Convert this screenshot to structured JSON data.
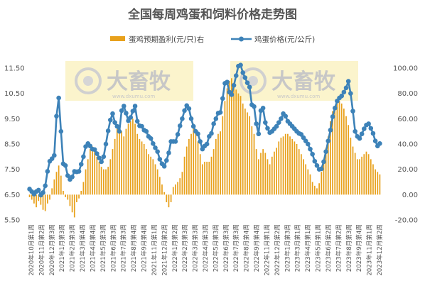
{
  "chart_data": {
    "type": "bar+line",
    "title": "全国每周鸡蛋和饲料价格走势图",
    "series": [
      {
        "name": "蛋鸡预期盈利(元/只)右",
        "type": "bar",
        "axis": "right",
        "color": "#e8a11c"
      },
      {
        "name": "鸡蛋价格(元/公斤)",
        "type": "line",
        "axis": "left",
        "color": "#3d82b8"
      }
    ],
    "left_axis": {
      "ylim": [
        5.5,
        11.5
      ],
      "ticks": [
        "5.50",
        "6.50",
        "7.50",
        "8.50",
        "9.50",
        "10.50",
        "11.50"
      ]
    },
    "right_axis": {
      "ylim": [
        -20,
        100
      ],
      "ticks": [
        "-20.00",
        "0.00",
        "20.00",
        "40.00",
        "60.00",
        "80.00",
        "100.00"
      ]
    },
    "x_tick_labels": [
      "2020年10月第1周",
      "2020年11月第2周",
      "2020年12月第3周",
      "2021年1月第3周",
      "2021年2月第3周",
      "2021年3月第4周",
      "2021年4月第4周",
      "2021年5月第3周",
      "2021年6月第3周",
      "2021年7月第3周",
      "2021年8月第4周",
      "2021年9月第4周",
      "2021年11月第1周",
      "2021年12月第2周",
      "2022年1月第2周",
      "2022年2月第3周",
      "2022年3月第3周",
      "2022年4月第3周",
      "2022年5月第3周",
      "2022年6月第3周",
      "2022年7月第3周",
      "2022年8月第4周",
      "2022年9月第4周",
      "2022年11月第1周",
      "2022年12月第2周",
      "2023年1月第3周",
      "2023年3月第1周",
      "2023年4月第1周",
      "2023年5月第1周",
      "2023年6月第2周",
      "2023年7月第2周",
      "2023年8月第3周",
      "2023年9月第4周",
      "2023年11月第1周",
      "2023年12月第2周"
    ],
    "egg_price": [
      6.72,
      6.62,
      6.52,
      6.62,
      6.68,
      6.48,
      6.58,
      6.85,
      7.42,
      7.82,
      7.92,
      8.05,
      9.6,
      10.32,
      9.0,
      7.72,
      7.65,
      7.25,
      7.1,
      7.2,
      7.42,
      7.4,
      7.42,
      7.7,
      8.0,
      8.4,
      8.52,
      8.42,
      8.3,
      8.28,
      8.12,
      7.95,
      7.8,
      8.0,
      8.5,
      9.02,
      9.45,
      9.7,
      9.35,
      9.2,
      9.0,
      9.82,
      10.0,
      9.72,
      9.42,
      9.55,
      9.8,
      10.0,
      9.4,
      9.22,
      9.2,
      9.05,
      9.0,
      8.8,
      8.72,
      8.52,
      8.35,
      8.2,
      7.9,
      7.72,
      7.62,
      7.85,
      8.15,
      8.6,
      8.6,
      8.6,
      8.88,
      9.22,
      9.5,
      9.82,
      10.02,
      9.9,
      9.5,
      9.2,
      9.0,
      8.9,
      8.6,
      8.3,
      8.42,
      8.5,
      8.8,
      8.92,
      9.3,
      9.5,
      9.72,
      9.75,
      10.3,
      10.9,
      10.95,
      10.55,
      10.45,
      10.82,
      11.2,
      11.58,
      11.62,
      11.32,
      11.12,
      10.92,
      10.75,
      10.05,
      9.98,
      9.3,
      8.9,
      9.82,
      9.92,
      9.35,
      9.12,
      8.95,
      9.0,
      9.1,
      9.2,
      9.35,
      9.5,
      9.7,
      9.6,
      9.4,
      9.3,
      9.2,
      9.1,
      9.0,
      8.92,
      8.88,
      8.75,
      8.62,
      8.5,
      8.3,
      8.1,
      7.82,
      7.65,
      7.5,
      7.52,
      7.8,
      8.2,
      8.62,
      9.05,
      9.58,
      9.92,
      10.2,
      10.32,
      10.4,
      10.55,
      10.72,
      10.98,
      10.5,
      9.8,
      9.0,
      8.8,
      8.72,
      8.9,
      9.1,
      9.25,
      9.3,
      9.12,
      8.92,
      8.62,
      8.42,
      8.52
    ],
    "egg_profit": [
      -2,
      -4,
      -7,
      -10,
      -5,
      -8,
      -12,
      -13,
      -7,
      -4,
      5,
      12,
      18,
      23,
      15,
      3,
      -2,
      -4,
      -9,
      -14,
      -18,
      -6,
      -3,
      3,
      10,
      20,
      28,
      36,
      38,
      34,
      30,
      26,
      22,
      20,
      20,
      22,
      28,
      36,
      44,
      52,
      55,
      50,
      46,
      52,
      56,
      58,
      60,
      56,
      48,
      44,
      42,
      40,
      36,
      32,
      30,
      28,
      24,
      20,
      14,
      8,
      2,
      -6,
      -10,
      -6,
      6,
      8,
      10,
      13,
      18,
      30,
      38,
      44,
      48,
      56,
      50,
      42,
      32,
      24,
      26,
      26,
      26,
      30,
      36,
      44,
      48,
      50,
      62,
      74,
      84,
      90,
      92,
      86,
      83,
      80,
      78,
      72,
      68,
      65,
      62,
      54,
      48,
      36,
      28,
      33,
      36,
      33,
      28,
      24,
      30,
      34,
      37,
      42,
      45,
      46,
      48,
      48,
      46,
      44,
      42,
      40,
      36,
      32,
      28,
      24,
      20,
      16,
      10,
      7,
      5,
      9,
      18,
      26,
      37,
      46,
      58,
      66,
      70,
      72,
      74,
      72,
      68,
      62,
      55,
      45,
      38,
      33,
      28,
      28,
      30,
      32,
      34,
      32,
      28,
      24,
      20,
      18,
      16
    ]
  },
  "watermark": {
    "brand": "大畜牧",
    "url": "www.dxumu.com"
  }
}
